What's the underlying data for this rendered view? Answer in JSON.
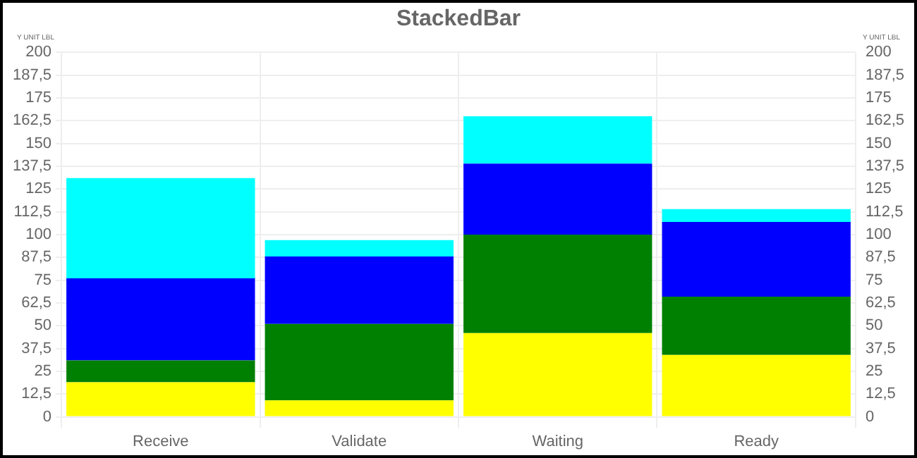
{
  "chart_data": {
    "type": "bar",
    "title": "StackedBar",
    "ylabel": "Y UNIT LBL",
    "y2label": "Y UNIT LBL",
    "stacked": true,
    "grid": true,
    "legend": false,
    "categories": [
      "Receive",
      "Validate",
      "Waiting",
      "Ready"
    ],
    "series": [
      {
        "color": "#ffff00",
        "values": [
          19,
          9,
          46,
          34
        ]
      },
      {
        "color": "#008000",
        "values": [
          12,
          42,
          54,
          32
        ]
      },
      {
        "color": "#0000ff",
        "values": [
          45,
          37,
          39,
          41
        ]
      },
      {
        "color": "#00ffff",
        "values": [
          55,
          9,
          26,
          7
        ]
      }
    ],
    "ylim": [
      0,
      200
    ],
    "yticks": [
      0,
      {
        "value": 12.5,
        "label": "12,5"
      },
      25,
      {
        "value": 37.5,
        "label": "37,5"
      },
      50,
      {
        "value": 62.5,
        "label": "62,5"
      },
      75,
      {
        "value": 87.5,
        "label": "87,5"
      },
      100,
      {
        "value": 112.5,
        "label": "112,5"
      },
      125,
      {
        "value": 137.5,
        "label": "137,5"
      },
      150,
      {
        "value": 162.5,
        "label": "162,5"
      },
      175,
      {
        "value": 187.5,
        "label": "187,5"
      },
      200
    ],
    "y2lim": [
      0,
      200
    ],
    "y2ticks": [
      0,
      {
        "value": 12.5,
        "label": "12,5"
      },
      25,
      {
        "value": 37.5,
        "label": "37,5"
      },
      50,
      {
        "value": 62.5,
        "label": "62,5"
      },
      75,
      {
        "value": 87.5,
        "label": "87,5"
      },
      100,
      {
        "value": 112.5,
        "label": "112,5"
      },
      125,
      {
        "value": 137.5,
        "label": "137,5"
      },
      150,
      {
        "value": 162.5,
        "label": "162,5"
      },
      175,
      {
        "value": 187.5,
        "label": "187,5"
      },
      200
    ]
  }
}
